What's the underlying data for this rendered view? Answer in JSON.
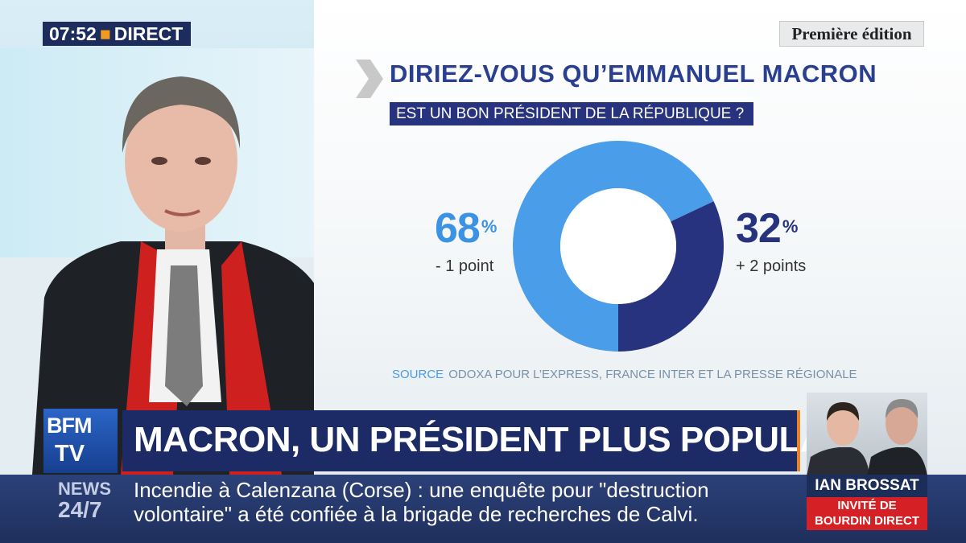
{
  "clock": {
    "time": "07:52",
    "label": "DIRECT"
  },
  "edition": "Première édition",
  "poll": {
    "question_line1": "DIRIEZ-VOUS QU’EMMANUEL MACRON",
    "question_line2": "EST UN BON PRÉSIDENT DE LA RÉPUBLIQUE ?",
    "source_label": "SOURCE",
    "source_text": "ODOXA POUR L’EXPRESS, FRANCE INTER ET LA PRESSE RÉGIONALE",
    "left_value": "68",
    "left_change": "- 1 point",
    "right_value": "32",
    "right_change": "+ 2 points",
    "percent_sign": "%"
  },
  "chart_data": {
    "type": "pie",
    "title": "DIRIEZ-VOUS QU’EMMANUEL MACRON EST UN BON PRÉSIDENT DE LA RÉPUBLIQUE ?",
    "slices": [
      {
        "value": 68,
        "color": "#4a9de8",
        "change": "- 1 point"
      },
      {
        "value": 32,
        "color": "#27337f",
        "change": "+ 2 points"
      }
    ]
  },
  "logo": {
    "line1": "BFM",
    "line2": "TV"
  },
  "headline": "MACRON, UN PRÉSIDENT PLUS POPULAIRE ?",
  "ticker": {
    "brand_line1": "NEWS",
    "brand_line2": "24/7",
    "text": "Incendie à Calenzana (Corse) : une enquête pour \"destruction volontaire\" a été confiée à la brigade de recherches de Calvi."
  },
  "guest": {
    "name": "IAN BROSSAT",
    "invite_line1": "INVITÉ DE",
    "invite_line2": "BOURDIN DIRECT"
  },
  "colors": {
    "accent_orange": "#e8842a",
    "navy": "#1c2a66",
    "light_blue": "#4a9de8",
    "red": "#d52126"
  }
}
